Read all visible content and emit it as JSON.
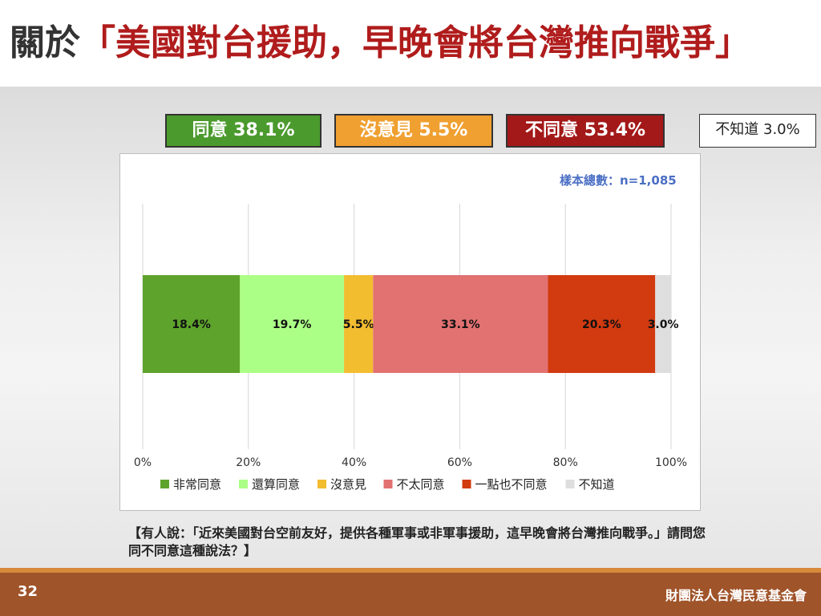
{
  "title": {
    "prefix": "關於",
    "quote": "「美國對台援助，早晚會將台灣推向戰爭」"
  },
  "summary": [
    {
      "label": "同意 38.1%",
      "bg": "#4b9a2d",
      "fg": "#ffffff"
    },
    {
      "label": "沒意見 5.5%",
      "bg": "#f0a030",
      "fg": "#ffffff"
    },
    {
      "label": "不同意 53.4%",
      "bg": "#a31818",
      "fg": "#ffffff"
    },
    {
      "label": "不知道 3.0%",
      "bg": "#ffffff",
      "fg": "#222222"
    }
  ],
  "sample_size": "樣本總數：n=1,085",
  "chart_data": {
    "type": "bar",
    "orientation": "horizontal",
    "stacked": true,
    "xlim": [
      0,
      100
    ],
    "x_ticks": [
      "0%",
      "20%",
      "40%",
      "60%",
      "80%",
      "100%"
    ],
    "grid": true,
    "legend_position": "bottom",
    "series": [
      {
        "name": "非常同意",
        "value": 18.4,
        "label": "18.4%",
        "color": "#5ea32c"
      },
      {
        "name": "還算同意",
        "value": 19.7,
        "label": "19.7%",
        "color": "#acff86"
      },
      {
        "name": "沒意見",
        "value": 5.5,
        "label": "5.5%",
        "color": "#f3bd30"
      },
      {
        "name": "不太同意",
        "value": 33.1,
        "label": "33.1%",
        "color": "#e27171"
      },
      {
        "name": "一點也不同意",
        "value": 20.3,
        "label": "20.3%",
        "color": "#d23a10"
      },
      {
        "name": "不知道",
        "value": 3.0,
        "label": "3.0%",
        "color": "#dedede"
      }
    ]
  },
  "question": "【有人說：「近來美國對台空前友好，提供各種軍事或非軍事援助，這早晚會將台灣推向戰爭。」請問您同不同意這種說法？】",
  "footer": {
    "page_number": "32",
    "organization": "財團法人台灣民意基金會"
  }
}
